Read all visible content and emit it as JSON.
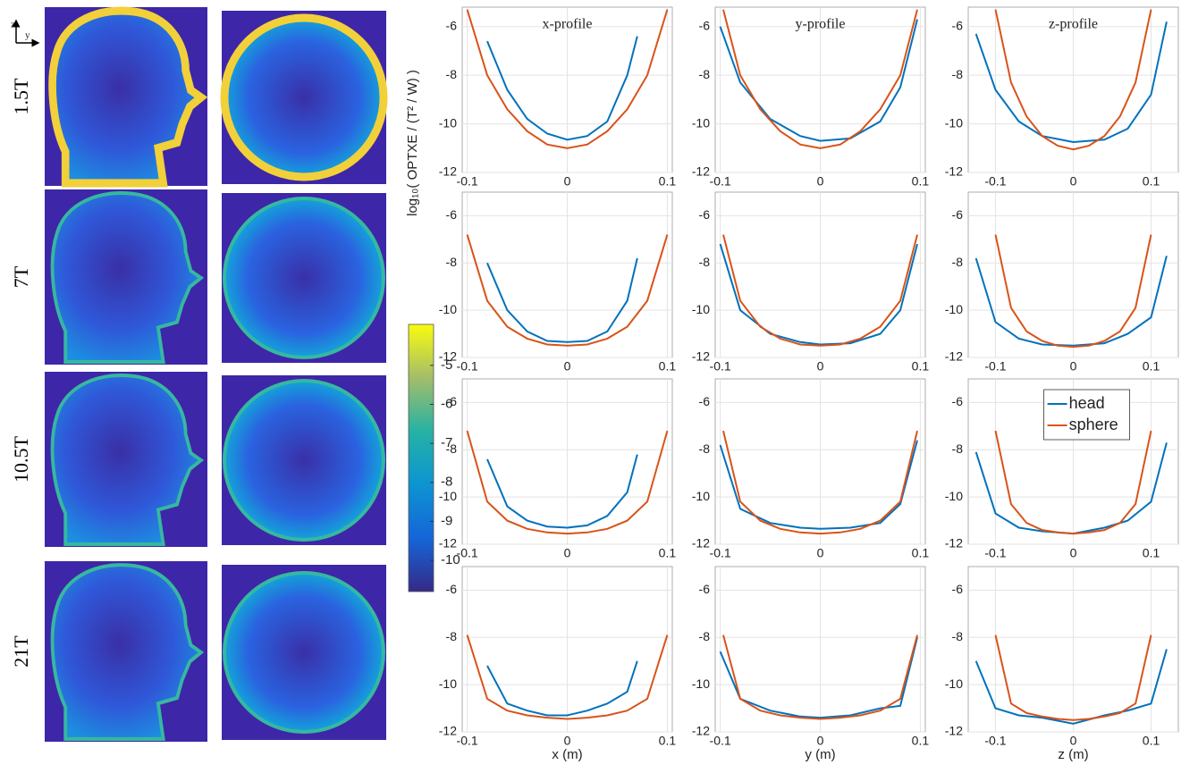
{
  "row_labels": [
    "1.5T",
    "7T",
    "10.5T",
    "21T"
  ],
  "orientation": {
    "vertical": "z",
    "horizontal": "y"
  },
  "colorbar": {
    "label": "log₁₀( OPTXE / (T² / W) )",
    "lim": [
      -10.8,
      -3.95
    ],
    "ticks": [
      -5,
      -6,
      -7,
      -8,
      -9,
      -10
    ]
  },
  "chart_data": [
    {
      "type": "line",
      "title": "x-profile",
      "xlim": [
        -0.105,
        0.105
      ],
      "ylim": [
        -12,
        -5.2
      ],
      "xticks": [
        -0.1,
        0,
        0.1
      ],
      "yticks": [
        -12,
        -10,
        -8,
        -6
      ],
      "grid": true,
      "series": [
        {
          "color": "#0072bd",
          "x": [
            -0.08,
            -0.06,
            -0.04,
            -0.02,
            0,
            0.02,
            0.04,
            0.06,
            0.07
          ],
          "values": [
            -6.6,
            -8.6,
            -9.8,
            -10.4,
            -10.65,
            -10.5,
            -9.9,
            -8.0,
            -6.4
          ]
        },
        {
          "color": "#d95319",
          "x": [
            -0.1,
            -0.08,
            -0.06,
            -0.04,
            -0.02,
            0,
            0.02,
            0.04,
            0.06,
            0.08,
            0.1
          ],
          "values": [
            -5.3,
            -8.0,
            -9.4,
            -10.3,
            -10.85,
            -11.0,
            -10.85,
            -10.3,
            -9.4,
            -8.0,
            -5.3
          ]
        }
      ]
    },
    {
      "type": "line",
      "title": "y-profile",
      "xlim": [
        -0.105,
        0.105
      ],
      "ylim": [
        -12,
        -5.2
      ],
      "xticks": [
        -0.1,
        0,
        0.1
      ],
      "yticks": [
        -12,
        -10,
        -8,
        -6
      ],
      "grid": true,
      "series": [
        {
          "color": "#0072bd",
          "x": [
            -0.1,
            -0.08,
            -0.05,
            -0.02,
            0,
            0.03,
            0.06,
            0.08,
            0.097
          ],
          "values": [
            -6.0,
            -8.3,
            -9.8,
            -10.5,
            -10.7,
            -10.6,
            -9.9,
            -8.5,
            -5.7
          ]
        },
        {
          "color": "#d95319",
          "x": [
            -0.097,
            -0.08,
            -0.06,
            -0.04,
            -0.02,
            0,
            0.02,
            0.04,
            0.06,
            0.08,
            0.097
          ],
          "values": [
            -5.3,
            -8.0,
            -9.4,
            -10.3,
            -10.85,
            -11.0,
            -10.85,
            -10.3,
            -9.4,
            -8.0,
            -5.3
          ]
        }
      ]
    },
    {
      "type": "line",
      "title": "z-profile",
      "xlim": [
        -0.135,
        0.135
      ],
      "ylim": [
        -12,
        -5.2
      ],
      "xticks": [
        -0.1,
        0,
        0.1
      ],
      "yticks": [
        -12,
        -10,
        -8,
        -6
      ],
      "grid": true,
      "series": [
        {
          "color": "#0072bd",
          "x": [
            -0.125,
            -0.1,
            -0.07,
            -0.04,
            0,
            0.04,
            0.07,
            0.1,
            0.12
          ],
          "values": [
            -6.3,
            -8.6,
            -9.9,
            -10.5,
            -10.75,
            -10.65,
            -10.2,
            -8.8,
            -5.8
          ]
        },
        {
          "color": "#d95319",
          "x": [
            -0.1,
            -0.08,
            -0.06,
            -0.04,
            -0.02,
            0,
            0.02,
            0.04,
            0.06,
            0.08,
            0.1
          ],
          "values": [
            -5.3,
            -8.3,
            -9.7,
            -10.5,
            -10.9,
            -11.05,
            -10.9,
            -10.5,
            -9.7,
            -8.3,
            -5.3
          ]
        }
      ]
    },
    {
      "type": "line",
      "xlim": [
        -0.105,
        0.105
      ],
      "ylim": [
        -12,
        -5
      ],
      "xticks": [
        -0.1,
        0,
        0.1
      ],
      "yticks": [
        -12,
        -10,
        -8,
        -6
      ],
      "grid": true,
      "series": [
        {
          "color": "#0072bd",
          "x": [
            -0.08,
            -0.06,
            -0.04,
            -0.02,
            0,
            0.02,
            0.04,
            0.06,
            0.07
          ],
          "values": [
            -8.0,
            -10.0,
            -10.9,
            -11.3,
            -11.35,
            -11.3,
            -10.9,
            -9.6,
            -7.8
          ]
        },
        {
          "color": "#d95319",
          "x": [
            -0.1,
            -0.08,
            -0.06,
            -0.04,
            -0.02,
            0,
            0.02,
            0.04,
            0.06,
            0.08,
            0.1
          ],
          "values": [
            -6.8,
            -9.6,
            -10.7,
            -11.2,
            -11.45,
            -11.5,
            -11.45,
            -11.2,
            -10.7,
            -9.6,
            -6.8
          ]
        }
      ]
    },
    {
      "type": "line",
      "xlim": [
        -0.105,
        0.105
      ],
      "ylim": [
        -12,
        -5
      ],
      "xticks": [
        -0.1,
        0,
        0.1
      ],
      "yticks": [
        -12,
        -10,
        -8,
        -6
      ],
      "grid": true,
      "series": [
        {
          "color": "#0072bd",
          "x": [
            -0.1,
            -0.08,
            -0.05,
            -0.02,
            0,
            0.03,
            0.06,
            0.08,
            0.097
          ],
          "values": [
            -7.2,
            -10.0,
            -11.0,
            -11.35,
            -11.45,
            -11.4,
            -11.0,
            -10.0,
            -7.2
          ]
        },
        {
          "color": "#d95319",
          "x": [
            -0.097,
            -0.08,
            -0.06,
            -0.04,
            -0.02,
            0,
            0.02,
            0.04,
            0.06,
            0.08,
            0.097
          ],
          "values": [
            -6.8,
            -9.6,
            -10.7,
            -11.2,
            -11.45,
            -11.5,
            -11.45,
            -11.2,
            -10.7,
            -9.6,
            -6.8
          ]
        }
      ]
    },
    {
      "type": "line",
      "xlim": [
        -0.135,
        0.135
      ],
      "ylim": [
        -12,
        -5
      ],
      "xticks": [
        -0.1,
        0,
        0.1
      ],
      "yticks": [
        -12,
        -10,
        -8,
        -6
      ],
      "grid": true,
      "series": [
        {
          "color": "#0072bd",
          "x": [
            -0.125,
            -0.1,
            -0.07,
            -0.04,
            0,
            0.04,
            0.07,
            0.1,
            0.12
          ],
          "values": [
            -7.8,
            -10.5,
            -11.2,
            -11.45,
            -11.5,
            -11.4,
            -11.0,
            -10.3,
            -7.7
          ]
        },
        {
          "color": "#d95319",
          "x": [
            -0.1,
            -0.08,
            -0.06,
            -0.04,
            -0.02,
            0,
            0.02,
            0.04,
            0.06,
            0.08,
            0.1
          ],
          "values": [
            -6.8,
            -9.9,
            -10.9,
            -11.3,
            -11.5,
            -11.55,
            -11.5,
            -11.3,
            -10.9,
            -9.9,
            -6.8
          ]
        }
      ]
    },
    {
      "type": "line",
      "xlim": [
        -0.105,
        0.105
      ],
      "ylim": [
        -12,
        -5
      ],
      "xticks": [
        -0.1,
        0,
        0.1
      ],
      "yticks": [
        -12,
        -10,
        -8,
        -6
      ],
      "grid": true,
      "series": [
        {
          "color": "#0072bd",
          "x": [
            -0.08,
            -0.06,
            -0.04,
            -0.02,
            0,
            0.02,
            0.04,
            0.06,
            0.07
          ],
          "values": [
            -8.4,
            -10.4,
            -11.0,
            -11.25,
            -11.3,
            -11.2,
            -10.8,
            -9.8,
            -8.2
          ]
        },
        {
          "color": "#d95319",
          "x": [
            -0.1,
            -0.08,
            -0.06,
            -0.04,
            -0.02,
            0,
            0.02,
            0.04,
            0.06,
            0.08,
            0.1
          ],
          "values": [
            -7.2,
            -10.2,
            -11.0,
            -11.35,
            -11.5,
            -11.55,
            -11.5,
            -11.35,
            -11.0,
            -10.2,
            -7.2
          ]
        }
      ]
    },
    {
      "type": "line",
      "xlim": [
        -0.105,
        0.105
      ],
      "ylim": [
        -12,
        -5
      ],
      "xticks": [
        -0.1,
        0,
        0.1
      ],
      "yticks": [
        -12,
        -10,
        -8,
        -6
      ],
      "grid": true,
      "series": [
        {
          "color": "#0072bd",
          "x": [
            -0.1,
            -0.08,
            -0.05,
            -0.02,
            0,
            0.03,
            0.06,
            0.08,
            0.097
          ],
          "values": [
            -7.8,
            -10.5,
            -11.1,
            -11.3,
            -11.35,
            -11.3,
            -11.1,
            -10.3,
            -7.6
          ]
        },
        {
          "color": "#d95319",
          "x": [
            -0.097,
            -0.08,
            -0.06,
            -0.04,
            -0.02,
            0,
            0.02,
            0.04,
            0.06,
            0.08,
            0.097
          ],
          "values": [
            -7.2,
            -10.2,
            -11.0,
            -11.35,
            -11.5,
            -11.55,
            -11.5,
            -11.35,
            -11.0,
            -10.2,
            -7.2
          ]
        }
      ]
    },
    {
      "type": "line",
      "xlim": [
        -0.135,
        0.135
      ],
      "ylim": [
        -12,
        -5
      ],
      "xticks": [
        -0.1,
        0,
        0.1
      ],
      "yticks": [
        -12,
        -10,
        -8,
        -6
      ],
      "grid": true,
      "legend": "upper center",
      "series": [
        {
          "name": "head",
          "color": "#0072bd",
          "x": [
            -0.125,
            -0.1,
            -0.07,
            -0.04,
            0,
            0.04,
            0.07,
            0.1,
            0.12
          ],
          "values": [
            -8.1,
            -10.7,
            -11.3,
            -11.45,
            -11.55,
            -11.3,
            -11.0,
            -10.2,
            -7.7
          ]
        },
        {
          "name": "sphere",
          "color": "#d95319",
          "x": [
            -0.1,
            -0.08,
            -0.06,
            -0.04,
            -0.02,
            0,
            0.02,
            0.04,
            0.06,
            0.08,
            0.1
          ],
          "values": [
            -7.2,
            -10.3,
            -11.1,
            -11.4,
            -11.5,
            -11.55,
            -11.5,
            -11.4,
            -11.1,
            -10.3,
            -7.2
          ]
        }
      ]
    },
    {
      "type": "line",
      "xlabel": "x (m)",
      "xlim": [
        -0.105,
        0.105
      ],
      "ylim": [
        -12,
        -5
      ],
      "xticks": [
        -0.1,
        0,
        0.1
      ],
      "yticks": [
        -12,
        -10,
        -8,
        -6
      ],
      "grid": true,
      "series": [
        {
          "color": "#0072bd",
          "x": [
            -0.08,
            -0.06,
            -0.04,
            -0.02,
            0,
            0.02,
            0.04,
            0.06,
            0.07
          ],
          "values": [
            -9.2,
            -10.8,
            -11.1,
            -11.3,
            -11.3,
            -11.1,
            -10.8,
            -10.3,
            -9.0
          ]
        },
        {
          "color": "#d95319",
          "x": [
            -0.1,
            -0.08,
            -0.06,
            -0.04,
            -0.02,
            0,
            0.02,
            0.04,
            0.06,
            0.08,
            0.1
          ],
          "values": [
            -7.9,
            -10.6,
            -11.1,
            -11.3,
            -11.4,
            -11.45,
            -11.4,
            -11.3,
            -11.1,
            -10.6,
            -7.9
          ]
        }
      ]
    },
    {
      "type": "line",
      "xlabel": "y (m)",
      "xlim": [
        -0.105,
        0.105
      ],
      "ylim": [
        -12,
        -5
      ],
      "xticks": [
        -0.1,
        0,
        0.1
      ],
      "yticks": [
        -12,
        -10,
        -8,
        -6
      ],
      "grid": true,
      "series": [
        {
          "color": "#0072bd",
          "x": [
            -0.1,
            -0.08,
            -0.05,
            -0.02,
            0,
            0.03,
            0.06,
            0.08,
            0.097
          ],
          "values": [
            -8.6,
            -10.6,
            -11.1,
            -11.35,
            -11.4,
            -11.3,
            -11.0,
            -10.9,
            -8.0
          ]
        },
        {
          "color": "#d95319",
          "x": [
            -0.097,
            -0.08,
            -0.06,
            -0.04,
            -0.02,
            0,
            0.02,
            0.04,
            0.06,
            0.08,
            0.097
          ],
          "values": [
            -7.9,
            -10.6,
            -11.1,
            -11.3,
            -11.4,
            -11.45,
            -11.4,
            -11.3,
            -11.1,
            -10.6,
            -7.9
          ]
        }
      ]
    },
    {
      "type": "line",
      "xlabel": "z (m)",
      "xlim": [
        -0.135,
        0.135
      ],
      "ylim": [
        -12,
        -5
      ],
      "xticks": [
        -0.1,
        0,
        0.1
      ],
      "yticks": [
        -12,
        -10,
        -8,
        -6
      ],
      "grid": true,
      "series": [
        {
          "color": "#0072bd",
          "x": [
            -0.125,
            -0.1,
            -0.07,
            -0.04,
            0,
            0.04,
            0.07,
            0.1,
            0.12
          ],
          "values": [
            -9.0,
            -11.0,
            -11.3,
            -11.4,
            -11.65,
            -11.3,
            -11.1,
            -10.8,
            -8.5
          ]
        },
        {
          "color": "#d95319",
          "x": [
            -0.1,
            -0.08,
            -0.06,
            -0.04,
            -0.02,
            0,
            0.02,
            0.04,
            0.06,
            0.08,
            0.1
          ],
          "values": [
            -7.9,
            -10.8,
            -11.2,
            -11.35,
            -11.45,
            -11.5,
            -11.45,
            -11.35,
            -11.2,
            -10.8,
            -7.9
          ]
        }
      ]
    }
  ]
}
